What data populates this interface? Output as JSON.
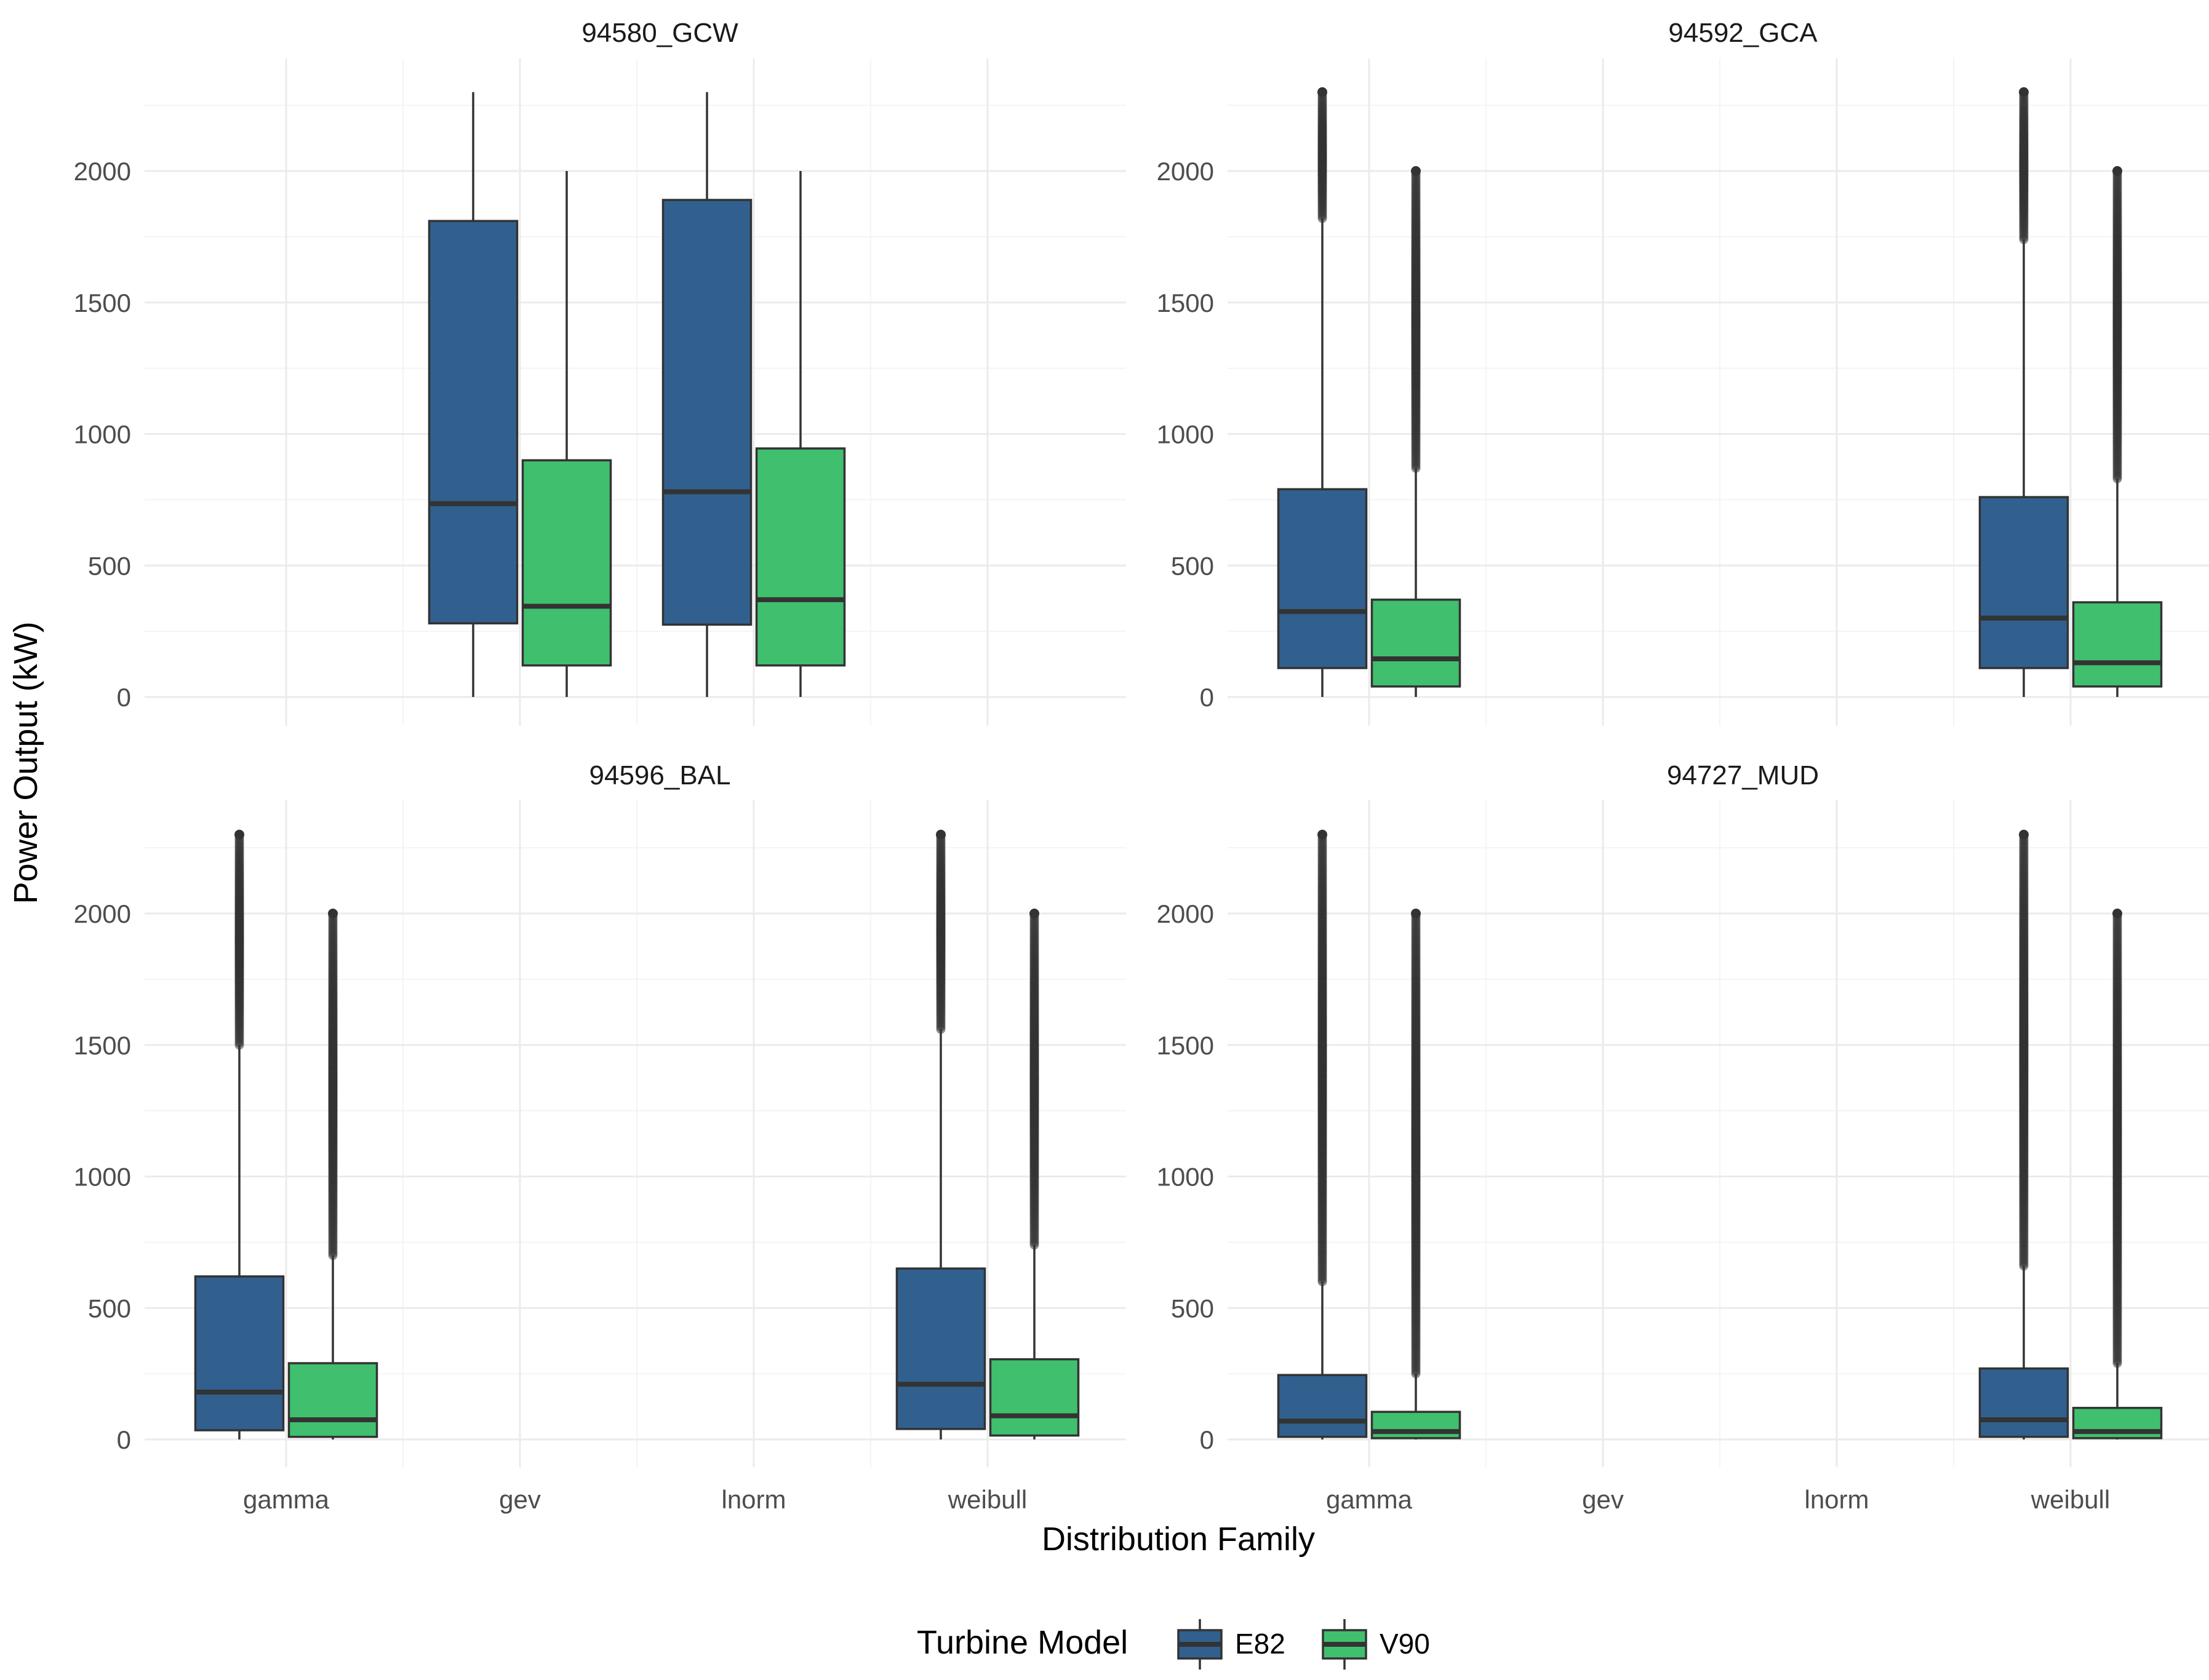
{
  "chart_data": {
    "type": "boxplot",
    "layout": "facet 2x2",
    "xlabel": "Distribution Family",
    "ylabel": "Power Output (kW)",
    "categories": [
      "gamma",
      "gev",
      "lnorm",
      "weibull"
    ],
    "y_ticks": [
      0,
      500,
      1000,
      1500,
      2000
    ],
    "ylim": [
      -100,
      2400
    ],
    "legend": {
      "title": "Turbine Model",
      "position": "bottom",
      "entries": [
        {
          "name": "E82",
          "color": "#31608f"
        },
        {
          "name": "V90",
          "color": "#40bf6e"
        }
      ]
    },
    "panels": [
      {
        "title": "94580_GCW",
        "boxes": [
          {
            "category": "gev",
            "series": "E82",
            "min": 0,
            "q1": 280,
            "median": 735,
            "q3": 1810,
            "max": 2300,
            "outliers": []
          },
          {
            "category": "gev",
            "series": "V90",
            "min": 0,
            "q1": 120,
            "median": 345,
            "q3": 900,
            "max": 2000,
            "outliers": []
          },
          {
            "category": "lnorm",
            "series": "E82",
            "min": 0,
            "q1": 275,
            "median": 780,
            "q3": 1890,
            "max": 2300,
            "outliers": []
          },
          {
            "category": "lnorm",
            "series": "V90",
            "min": 0,
            "q1": 120,
            "median": 370,
            "q3": 945,
            "max": 2000,
            "outliers": []
          }
        ]
      },
      {
        "title": "94592_GCA",
        "boxes": [
          {
            "category": "gamma",
            "series": "E82",
            "min": 0,
            "q1": 110,
            "median": 325,
            "q3": 790,
            "max": 1820,
            "outliers": [
              1820,
              2300
            ]
          },
          {
            "category": "gamma",
            "series": "V90",
            "min": 0,
            "q1": 40,
            "median": 145,
            "q3": 370,
            "max": 870,
            "outliers": [
              870,
              2000
            ]
          },
          {
            "category": "weibull",
            "series": "E82",
            "min": 0,
            "q1": 110,
            "median": 300,
            "q3": 760,
            "max": 1740,
            "outliers": [
              1740,
              2300
            ]
          },
          {
            "category": "weibull",
            "series": "V90",
            "min": 0,
            "q1": 40,
            "median": 130,
            "q3": 360,
            "max": 830,
            "outliers": [
              830,
              2000
            ]
          }
        ]
      },
      {
        "title": "94596_BAL",
        "boxes": [
          {
            "category": "gamma",
            "series": "E82",
            "min": 0,
            "q1": 35,
            "median": 180,
            "q3": 620,
            "max": 1500,
            "outliers": [
              1500,
              2300
            ]
          },
          {
            "category": "gamma",
            "series": "V90",
            "min": 0,
            "q1": 10,
            "median": 75,
            "q3": 290,
            "max": 700,
            "outliers": [
              700,
              2000
            ]
          },
          {
            "category": "weibull",
            "series": "E82",
            "min": 0,
            "q1": 40,
            "median": 210,
            "q3": 650,
            "max": 1560,
            "outliers": [
              1560,
              2300
            ]
          },
          {
            "category": "weibull",
            "series": "V90",
            "min": 0,
            "q1": 15,
            "median": 90,
            "q3": 305,
            "max": 740,
            "outliers": [
              740,
              2000
            ]
          }
        ]
      },
      {
        "title": "94727_MUD",
        "boxes": [
          {
            "category": "gamma",
            "series": "E82",
            "min": 0,
            "q1": 10,
            "median": 70,
            "q3": 245,
            "max": 600,
            "outliers": [
              600,
              2300
            ]
          },
          {
            "category": "gamma",
            "series": "V90",
            "min": 0,
            "q1": 5,
            "median": 30,
            "q3": 105,
            "max": 250,
            "outliers": [
              250,
              2000
            ]
          },
          {
            "category": "weibull",
            "series": "E82",
            "min": 0,
            "q1": 10,
            "median": 75,
            "q3": 270,
            "max": 660,
            "outliers": [
              660,
              2300
            ]
          },
          {
            "category": "weibull",
            "series": "V90",
            "min": 0,
            "q1": 5,
            "median": 30,
            "q3": 120,
            "max": 290,
            "outliers": [
              290,
              2000
            ]
          }
        ]
      }
    ]
  }
}
